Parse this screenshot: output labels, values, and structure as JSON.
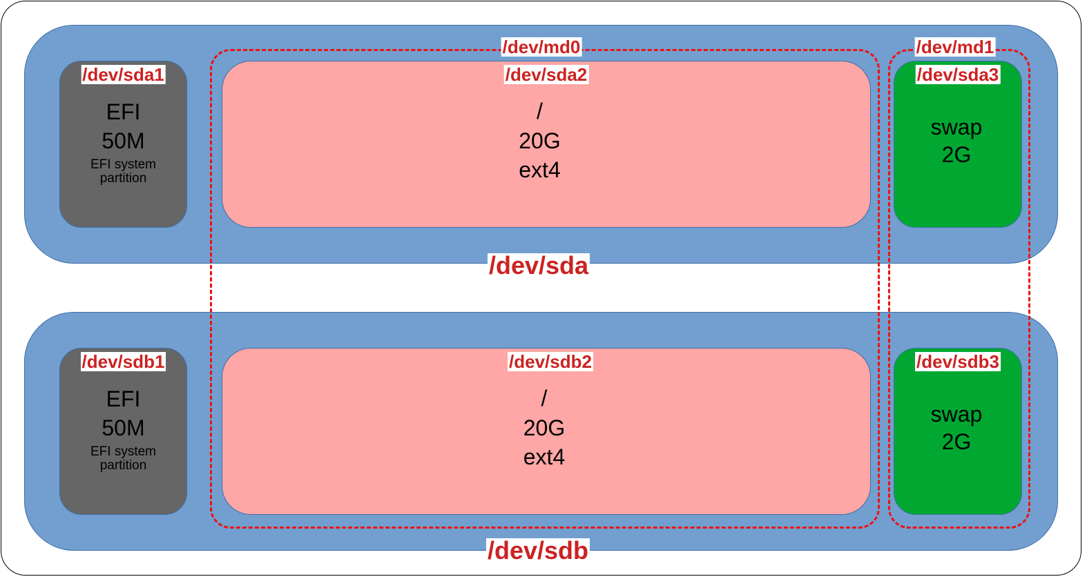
{
  "colors": {
    "disk": "#729fcf",
    "efi": "#666666",
    "root": "#ffa6a6",
    "swap": "#00a832",
    "label": "#cc2222",
    "raid_border": "#ee1111"
  },
  "disks": [
    {
      "label": "/dev/sda",
      "efi": {
        "dev": "/dev/sda1",
        "name": "EFI",
        "size": "50M",
        "desc1": "EFI system",
        "desc2": "partition"
      },
      "root": {
        "dev": "/dev/sda2",
        "mount": "/",
        "size": "20G",
        "fs": "ext4"
      },
      "swap": {
        "dev": "/dev/sda3",
        "name": "swap",
        "size": "2G"
      }
    },
    {
      "label": "/dev/sdb",
      "efi": {
        "dev": "/dev/sdb1",
        "name": "EFI",
        "size": "50M",
        "desc1": "EFI system",
        "desc2": "partition"
      },
      "root": {
        "dev": "/dev/sdb2",
        "mount": "/",
        "size": "20G",
        "fs": "ext4"
      },
      "swap": {
        "dev": "/dev/sdb3",
        "name": "swap",
        "size": "2G"
      }
    }
  ],
  "raids": [
    {
      "label": "/dev/md0"
    },
    {
      "label": "/dev/md1"
    }
  ]
}
